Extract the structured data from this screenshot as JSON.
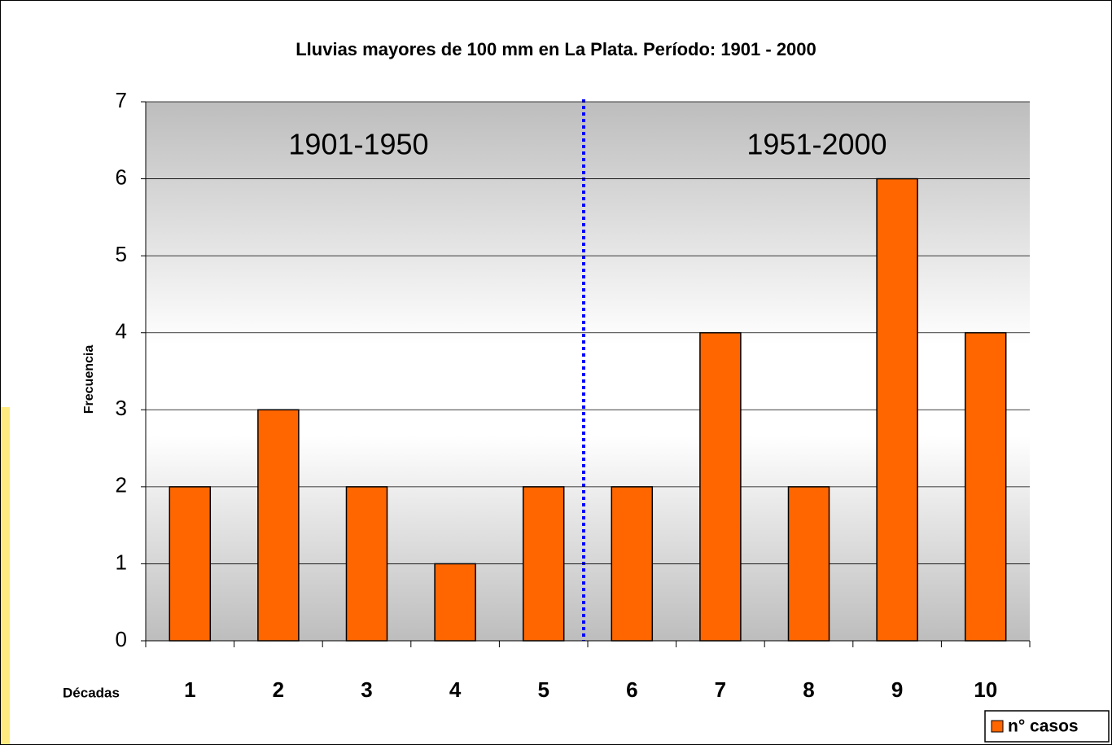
{
  "chart_data": {
    "type": "bar",
    "title": "Lluvias mayores de 100 mm en La Plata. Período: 1901 - 2000",
    "x_label": "Décadas",
    "y_label": "Frecuencia",
    "annotations": [
      "1901-1950",
      "1951-2000"
    ],
    "categories": [
      "1",
      "2",
      "3",
      "4",
      "5",
      "6",
      "7",
      "8",
      "9",
      "10"
    ],
    "series": [
      {
        "name": "n° casos",
        "color": "#ff6600",
        "values": [
          2,
          3,
          2,
          1,
          2,
          2,
          4,
          2,
          6,
          4
        ]
      }
    ],
    "ylim": [
      0,
      7
    ],
    "yticks": [
      0,
      1,
      2,
      3,
      4,
      5,
      6,
      7
    ],
    "grid": true,
    "legend": "bottom-right"
  }
}
